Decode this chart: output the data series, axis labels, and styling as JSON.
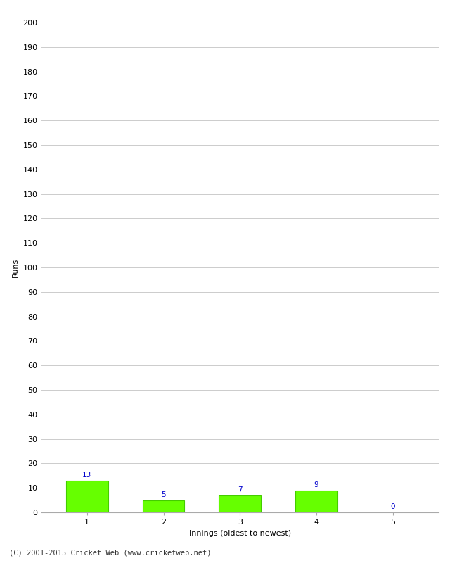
{
  "categories": [
    1,
    2,
    3,
    4,
    5
  ],
  "values": [
    13,
    5,
    7,
    9,
    0
  ],
  "bar_color": "#66ff00",
  "bar_edge_color": "#44cc00",
  "label_color": "#0000cc",
  "xlabel": "Innings (oldest to newest)",
  "ylabel": "Runs",
  "ylim": [
    0,
    200
  ],
  "yticks": [
    0,
    10,
    20,
    30,
    40,
    50,
    60,
    70,
    80,
    90,
    100,
    110,
    120,
    130,
    140,
    150,
    160,
    170,
    180,
    190,
    200
  ],
  "grid_color": "#cccccc",
  "background_color": "#ffffff",
  "footer": "(C) 2001-2015 Cricket Web (www.cricketweb.net)",
  "label_fontsize": 7.5,
  "axis_fontsize": 8,
  "footer_fontsize": 7.5,
  "bar_width": 0.55
}
